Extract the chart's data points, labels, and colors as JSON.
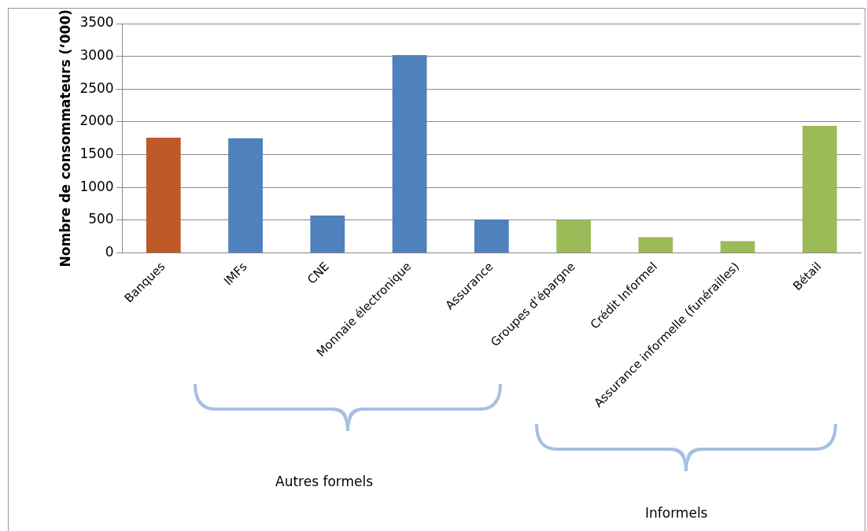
{
  "chart_data": {
    "type": "bar",
    "ylabel": "Nombre de consommateurs (‘000)",
    "categories": [
      "Banques",
      "IMFs",
      "CNE",
      "Monnaie électronique",
      "Assurance",
      "Groupes d’épargne",
      "Crédit Informel",
      "Assurance informelle (funérailles)",
      "Bétail"
    ],
    "values": [
      1760,
      1750,
      570,
      3020,
      510,
      500,
      240,
      180,
      1940
    ],
    "colors": [
      "#be5a28",
      "#4f81bd",
      "#4f81bd",
      "#4f81bd",
      "#4f81bd",
      "#9bbb59",
      "#9bbb59",
      "#9bbb59",
      "#9bbb59"
    ],
    "ylim": [
      0,
      3500
    ],
    "yticks": [
      0,
      500,
      1000,
      1500,
      2000,
      2500,
      3000,
      3500
    ],
    "grid": "y",
    "legend": false,
    "annotations": [
      "Autres formels",
      "Informels"
    ]
  }
}
